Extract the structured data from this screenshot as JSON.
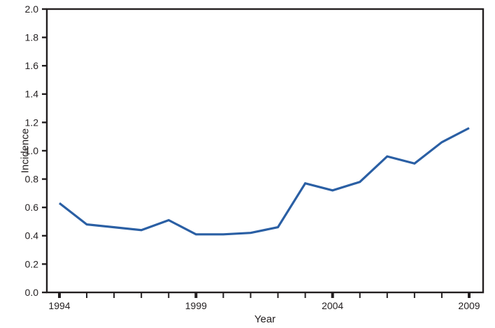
{
  "chart_data": {
    "type": "line",
    "title": "",
    "xlabel": "Year",
    "ylabel": "Incidence",
    "x": [
      1994,
      1995,
      1996,
      1997,
      1998,
      1999,
      2000,
      2001,
      2002,
      2003,
      2004,
      2005,
      2006,
      2007,
      2008,
      2009
    ],
    "series": [
      {
        "name": "incidence",
        "values": [
          0.63,
          0.48,
          0.46,
          0.44,
          0.51,
          0.41,
          0.41,
          0.42,
          0.46,
          0.77,
          0.72,
          0.78,
          0.96,
          0.91,
          1.06,
          1.16
        ]
      }
    ],
    "ylim": [
      0.0,
      2.0
    ],
    "y_tick_step": 0.2,
    "y_tick_labels": [
      "0.0",
      "0.2",
      "0.4",
      "0.6",
      "0.8",
      "1.0",
      "1.2",
      "1.4",
      "1.6",
      "1.8",
      "2.0"
    ],
    "labeled_x_ticks": [
      1994,
      1999,
      2004,
      2009
    ],
    "x_tick_labels": [
      "1994",
      "1999",
      "2004",
      "2009"
    ],
    "grid": "off",
    "legend": "none",
    "line_color": "#2a5fa4",
    "axis_color": "#231f20",
    "background": "#ffffff"
  }
}
